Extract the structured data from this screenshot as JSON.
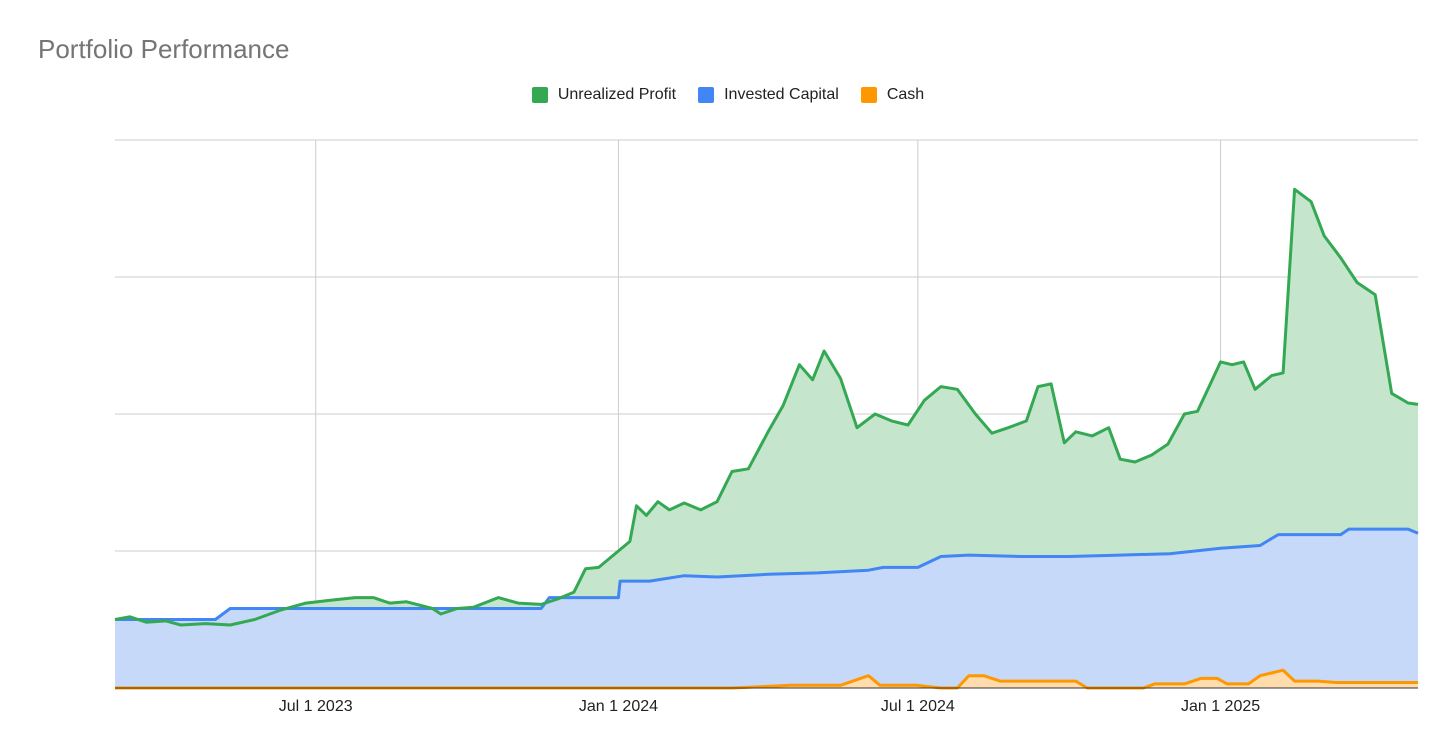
{
  "title": "Portfolio Performance",
  "legend": [
    {
      "label": "Unrealized Profit",
      "color": "#34a853"
    },
    {
      "label": "Invested Capital",
      "color": "#4285f4"
    },
    {
      "label": "Cash",
      "color": "#ff9800"
    }
  ],
  "chart_data": {
    "type": "area",
    "stacked": true,
    "title": "Portfolio Performance",
    "legend_position": "top-center",
    "grid": true,
    "x_axis": {
      "type": "date",
      "range": [
        "2023-03-01",
        "2025-05-01"
      ],
      "ticks": [
        {
          "date": "2023-07-01",
          "label": "Jul 1 2023"
        },
        {
          "date": "2024-01-01",
          "label": "Jan 1 2024"
        },
        {
          "date": "2024-07-01",
          "label": "Jul 1 2024"
        },
        {
          "date": "2025-01-01",
          "label": "Jan 1 2025"
        }
      ]
    },
    "y_axis": {
      "range": [
        0,
        4
      ],
      "gridlines": [
        0,
        1,
        2,
        3,
        4
      ],
      "tick_labels_visible": false
    },
    "series": [
      {
        "name": "Cash",
        "color": "#ff9800",
        "points": [
          [
            "2023-03-01",
            0
          ],
          [
            "2024-03-10",
            0
          ],
          [
            "2024-04-15",
            0.02
          ],
          [
            "2024-05-15",
            0.02
          ],
          [
            "2024-06-01",
            0.09
          ],
          [
            "2024-06-08",
            0.02
          ],
          [
            "2024-06-30",
            0.02
          ],
          [
            "2024-07-15",
            0.0
          ],
          [
            "2024-07-25",
            0.0
          ],
          [
            "2024-08-01",
            0.09
          ],
          [
            "2024-08-10",
            0.09
          ],
          [
            "2024-08-20",
            0.05
          ],
          [
            "2024-10-05",
            0.05
          ],
          [
            "2024-10-12",
            0.0
          ],
          [
            "2024-11-15",
            0.0
          ],
          [
            "2024-11-22",
            0.03
          ],
          [
            "2024-12-10",
            0.03
          ],
          [
            "2024-12-20",
            0.07
          ],
          [
            "2024-12-30",
            0.07
          ],
          [
            "2025-01-05",
            0.03
          ],
          [
            "2025-01-18",
            0.03
          ],
          [
            "2025-01-25",
            0.09
          ],
          [
            "2025-02-08",
            0.13
          ],
          [
            "2025-02-15",
            0.05
          ],
          [
            "2025-03-01",
            0.05
          ],
          [
            "2025-03-12",
            0.04
          ],
          [
            "2025-05-01",
            0.04
          ]
        ]
      },
      {
        "name": "Invested Capital",
        "color": "#4285f4",
        "points": [
          [
            "2023-03-01",
            0.5
          ],
          [
            "2023-04-15",
            0.5
          ],
          [
            "2023-05-01",
            0.5
          ],
          [
            "2023-05-10",
            0.58
          ],
          [
            "2023-11-15",
            0.58
          ],
          [
            "2023-11-20",
            0.66
          ],
          [
            "2024-01-01",
            0.66
          ],
          [
            "2024-01-02",
            0.78
          ],
          [
            "2024-01-20",
            0.78
          ],
          [
            "2024-02-10",
            0.82
          ],
          [
            "2024-03-01",
            0.81
          ],
          [
            "2024-04-01",
            0.83
          ],
          [
            "2024-05-01",
            0.84
          ],
          [
            "2024-06-01",
            0.86
          ],
          [
            "2024-06-10",
            0.88
          ],
          [
            "2024-07-01",
            0.88
          ],
          [
            "2024-07-15",
            0.96
          ],
          [
            "2024-08-01",
            0.97
          ],
          [
            "2024-09-01",
            0.96
          ],
          [
            "2024-10-01",
            0.96
          ],
          [
            "2024-11-01",
            0.97
          ],
          [
            "2024-12-01",
            0.98
          ],
          [
            "2025-01-01",
            1.02
          ],
          [
            "2025-01-25",
            1.04
          ],
          [
            "2025-02-05",
            1.12
          ],
          [
            "2025-02-20",
            1.12
          ],
          [
            "2025-03-15",
            1.12
          ],
          [
            "2025-03-20",
            1.16
          ],
          [
            "2025-04-25",
            1.16
          ],
          [
            "2025-05-01",
            1.13
          ]
        ]
      },
      {
        "name": "Unrealized Profit",
        "color": "#34a853",
        "points": [
          [
            "2023-03-01",
            0.5
          ],
          [
            "2023-03-10",
            0.52
          ],
          [
            "2023-03-20",
            0.48
          ],
          [
            "2023-04-01",
            0.49
          ],
          [
            "2023-04-10",
            0.46
          ],
          [
            "2023-04-25",
            0.47
          ],
          [
            "2023-05-10",
            0.46
          ],
          [
            "2023-05-25",
            0.5
          ],
          [
            "2023-06-10",
            0.57
          ],
          [
            "2023-06-25",
            0.62
          ],
          [
            "2023-07-10",
            0.64
          ],
          [
            "2023-07-25",
            0.66
          ],
          [
            "2023-08-05",
            0.66
          ],
          [
            "2023-08-15",
            0.62
          ],
          [
            "2023-08-25",
            0.63
          ],
          [
            "2023-09-10",
            0.58
          ],
          [
            "2023-09-15",
            0.54
          ],
          [
            "2023-09-25",
            0.58
          ],
          [
            "2023-10-05",
            0.59
          ],
          [
            "2023-10-20",
            0.66
          ],
          [
            "2023-11-01",
            0.62
          ],
          [
            "2023-11-15",
            0.61
          ],
          [
            "2023-11-25",
            0.65
          ],
          [
            "2023-12-05",
            0.7
          ],
          [
            "2023-12-12",
            0.87
          ],
          [
            "2023-12-20",
            0.88
          ],
          [
            "2024-01-01",
            1.0
          ],
          [
            "2024-01-08",
            1.07
          ],
          [
            "2024-01-12",
            1.33
          ],
          [
            "2024-01-18",
            1.26
          ],
          [
            "2024-01-25",
            1.36
          ],
          [
            "2024-02-01",
            1.3
          ],
          [
            "2024-02-10",
            1.35
          ],
          [
            "2024-02-20",
            1.3
          ],
          [
            "2024-03-01",
            1.36
          ],
          [
            "2024-03-10",
            1.58
          ],
          [
            "2024-03-20",
            1.6
          ],
          [
            "2024-04-01",
            1.87
          ],
          [
            "2024-04-10",
            2.06
          ],
          [
            "2024-04-20",
            2.36
          ],
          [
            "2024-04-28",
            2.25
          ],
          [
            "2024-05-05",
            2.46
          ],
          [
            "2024-05-15",
            2.26
          ],
          [
            "2024-05-25",
            1.9
          ],
          [
            "2024-06-05",
            2.0
          ],
          [
            "2024-06-15",
            1.95
          ],
          [
            "2024-06-25",
            1.92
          ],
          [
            "2024-07-05",
            2.1
          ],
          [
            "2024-07-15",
            2.2
          ],
          [
            "2024-07-25",
            2.18
          ],
          [
            "2024-08-05",
            2.0
          ],
          [
            "2024-08-15",
            1.86
          ],
          [
            "2024-08-25",
            1.9
          ],
          [
            "2024-09-05",
            1.95
          ],
          [
            "2024-09-12",
            2.2
          ],
          [
            "2024-09-20",
            2.22
          ],
          [
            "2024-09-28",
            1.79
          ],
          [
            "2024-10-05",
            1.87
          ],
          [
            "2024-10-15",
            1.84
          ],
          [
            "2024-10-25",
            1.9
          ],
          [
            "2024-11-01",
            1.67
          ],
          [
            "2024-11-10",
            1.65
          ],
          [
            "2024-11-20",
            1.7
          ],
          [
            "2024-11-30",
            1.78
          ],
          [
            "2024-12-10",
            2.0
          ],
          [
            "2024-12-18",
            2.02
          ],
          [
            "2024-12-25",
            2.2
          ],
          [
            "2025-01-01",
            2.38
          ],
          [
            "2025-01-08",
            2.36
          ],
          [
            "2025-01-15",
            2.38
          ],
          [
            "2025-01-22",
            2.18
          ],
          [
            "2025-02-01",
            2.28
          ],
          [
            "2025-02-08",
            2.3
          ],
          [
            "2025-02-15",
            3.64
          ],
          [
            "2025-02-25",
            3.55
          ],
          [
            "2025-03-05",
            3.3
          ],
          [
            "2025-03-15",
            3.14
          ],
          [
            "2025-03-25",
            2.96
          ],
          [
            "2025-04-05",
            2.87
          ],
          [
            "2025-04-15",
            2.15
          ],
          [
            "2025-04-25",
            2.08
          ],
          [
            "2025-05-01",
            2.07
          ]
        ]
      }
    ]
  }
}
